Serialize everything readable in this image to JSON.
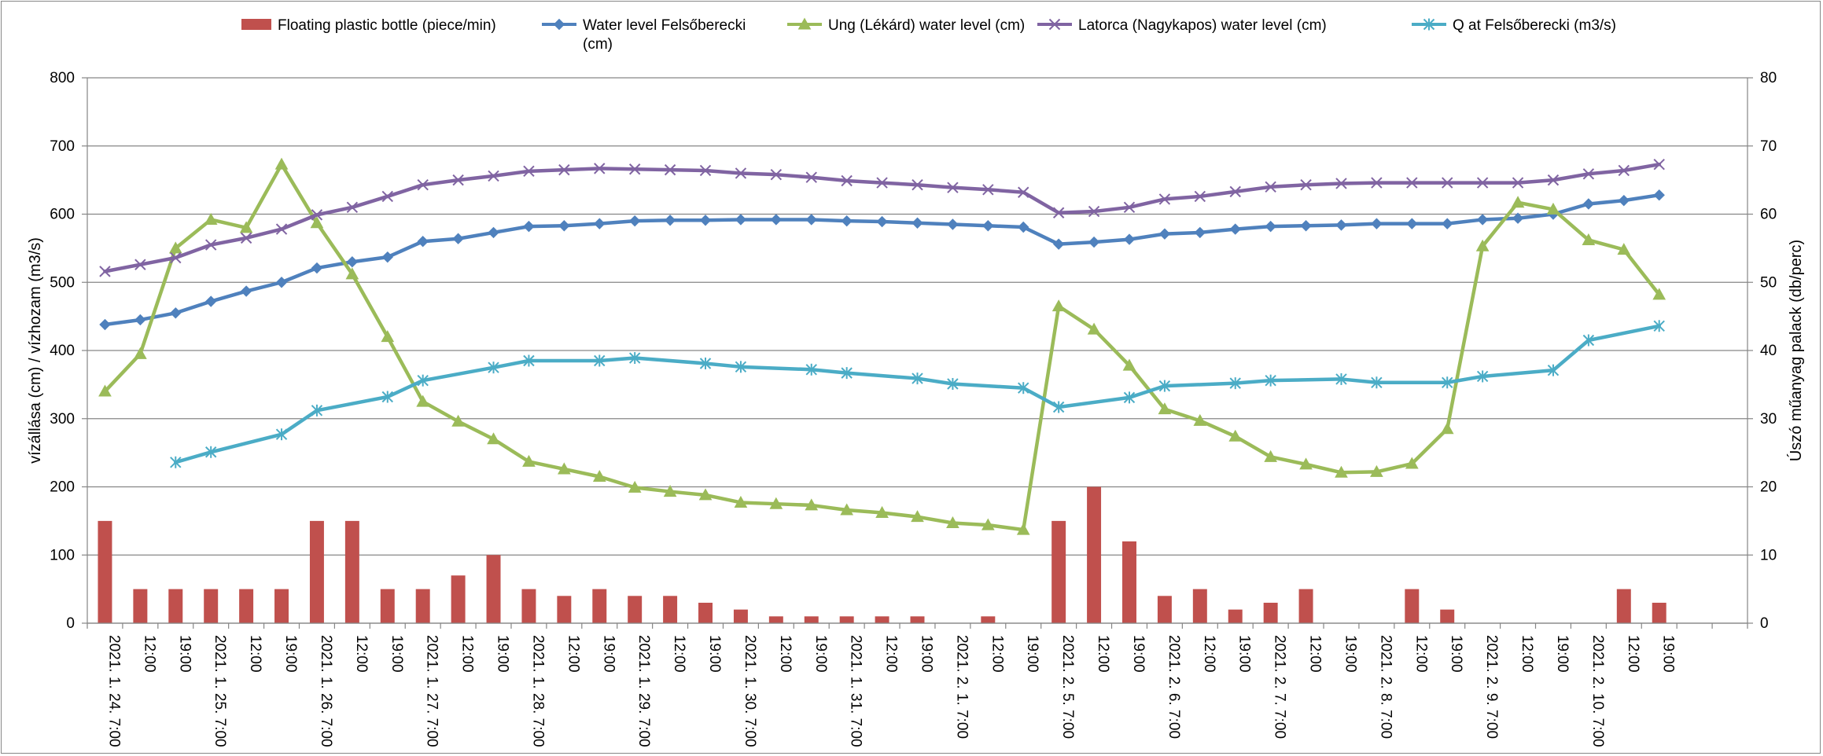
{
  "chart_data": {
    "type": "bar+line",
    "ylabel_left": "vízállása (cm) / vízhozam (m3/s)",
    "ylabel_right": "Úszó műanyag palack (db/perc)",
    "ylim_left": [
      0,
      800
    ],
    "ylim_right": [
      0,
      80
    ],
    "yticks_left": [
      "0",
      "100",
      "200",
      "300",
      "400",
      "500",
      "600",
      "700",
      "800"
    ],
    "yticks_right": [
      "0",
      "10",
      "20",
      "30",
      "40",
      "50",
      "60",
      "70",
      "80"
    ],
    "grid": true,
    "legend_position": "top",
    "categories": [
      "2021. 1. 24. 7:00",
      "12:00",
      "19:00",
      "2021. 1. 25. 7:00",
      "12:00",
      "19:00",
      "2021. 1. 26. 7:00",
      "12:00",
      "19:00",
      "2021. 1. 27. 7:00",
      "12:00",
      "19:00",
      "2021. 1. 28. 7:00",
      "12:00",
      "19:00",
      "2021. 1. 29. 7:00",
      "12:00",
      "19:00",
      "2021. 1. 30. 7:00",
      "12:00",
      "19:00",
      "2021. 1. 31. 7:00",
      "12:00",
      "19:00",
      "2021. 2. 1. 7:00",
      "12:00",
      "19:00",
      "2021. 2. 5. 7:00",
      "12:00",
      "19:00",
      "2021. 2. 6. 7:00",
      "12:00",
      "19:00",
      "2021. 2. 7. 7:00",
      "12:00",
      "19:00",
      "2021. 2. 8. 7:00",
      "12:00",
      "19:00",
      "2021. 2. 9. 7:00",
      "12:00",
      "19:00",
      "2021. 2. 10. 7:00",
      "12:00",
      "19:00"
    ],
    "series": [
      {
        "name": "Floating plastic bottle (piece/min)",
        "kind": "bar",
        "axis": "right",
        "color": "#C0504D",
        "values": [
          15,
          5,
          5,
          5,
          5,
          5,
          15,
          15,
          5,
          5,
          7,
          10,
          5,
          4,
          5,
          4,
          4,
          3,
          2,
          1,
          1,
          1,
          1,
          1,
          0,
          1,
          0,
          15,
          20,
          12,
          4,
          5,
          2,
          3,
          5,
          0,
          0,
          5,
          2,
          0,
          0,
          0,
          0,
          5,
          3
        ]
      },
      {
        "name": "Water level Felsőberecki (cm)",
        "kind": "line",
        "axis": "left",
        "color": "#4F81BD",
        "marker": "diamond",
        "values": [
          438,
          445,
          455,
          472,
          487,
          500,
          521,
          530,
          537,
          560,
          564,
          573,
          582,
          583,
          586,
          590,
          591,
          591,
          592,
          592,
          592,
          590,
          589,
          587,
          585,
          583,
          581,
          556,
          559,
          563,
          571,
          573,
          578,
          582,
          583,
          584,
          586,
          586,
          586,
          592,
          594,
          600,
          615,
          620,
          628
        ]
      },
      {
        "name": "Ung (Lékárd) water level (cm)",
        "kind": "line",
        "axis": "left",
        "color": "#9BBB59",
        "marker": "triangle",
        "values": [
          340,
          395,
          550,
          592,
          580,
          673,
          587,
          512,
          420,
          325,
          296,
          270,
          237,
          226,
          215,
          199,
          193,
          188,
          177,
          175,
          173,
          166,
          162,
          156,
          147,
          144,
          137,
          465,
          431,
          378,
          314,
          297,
          274,
          244,
          233,
          221,
          222,
          234,
          285,
          553,
          617,
          607,
          562,
          548,
          482
        ]
      },
      {
        "name": "Latorca (Nagykapos) water level (cm)",
        "kind": "line",
        "axis": "left",
        "color": "#8064A2",
        "marker": "x",
        "values": [
          516,
          526,
          536,
          555,
          565,
          578,
          599,
          610,
          626,
          643,
          650,
          656,
          663,
          665,
          667,
          666,
          665,
          664,
          660,
          658,
          654,
          649,
          646,
          643,
          639,
          636,
          632,
          602,
          604,
          610,
          622,
          626,
          633,
          640,
          643,
          645,
          646,
          646,
          646,
          646,
          646,
          650,
          659,
          664,
          673
        ]
      },
      {
        "name": "Q at Felsőberecki (m3/s)",
        "kind": "line",
        "axis": "left",
        "color": "#4BACC6",
        "marker": "asterisk",
        "values": [
          null,
          null,
          236,
          251,
          null,
          277,
          312,
          null,
          332,
          356,
          null,
          375,
          385,
          null,
          385,
          389,
          null,
          381,
          376,
          null,
          372,
          367,
          null,
          359,
          351,
          null,
          345,
          317,
          null,
          331,
          348,
          null,
          352,
          356,
          null,
          358,
          353,
          null,
          353,
          362,
          null,
          371,
          415,
          null,
          436
        ]
      }
    ]
  }
}
